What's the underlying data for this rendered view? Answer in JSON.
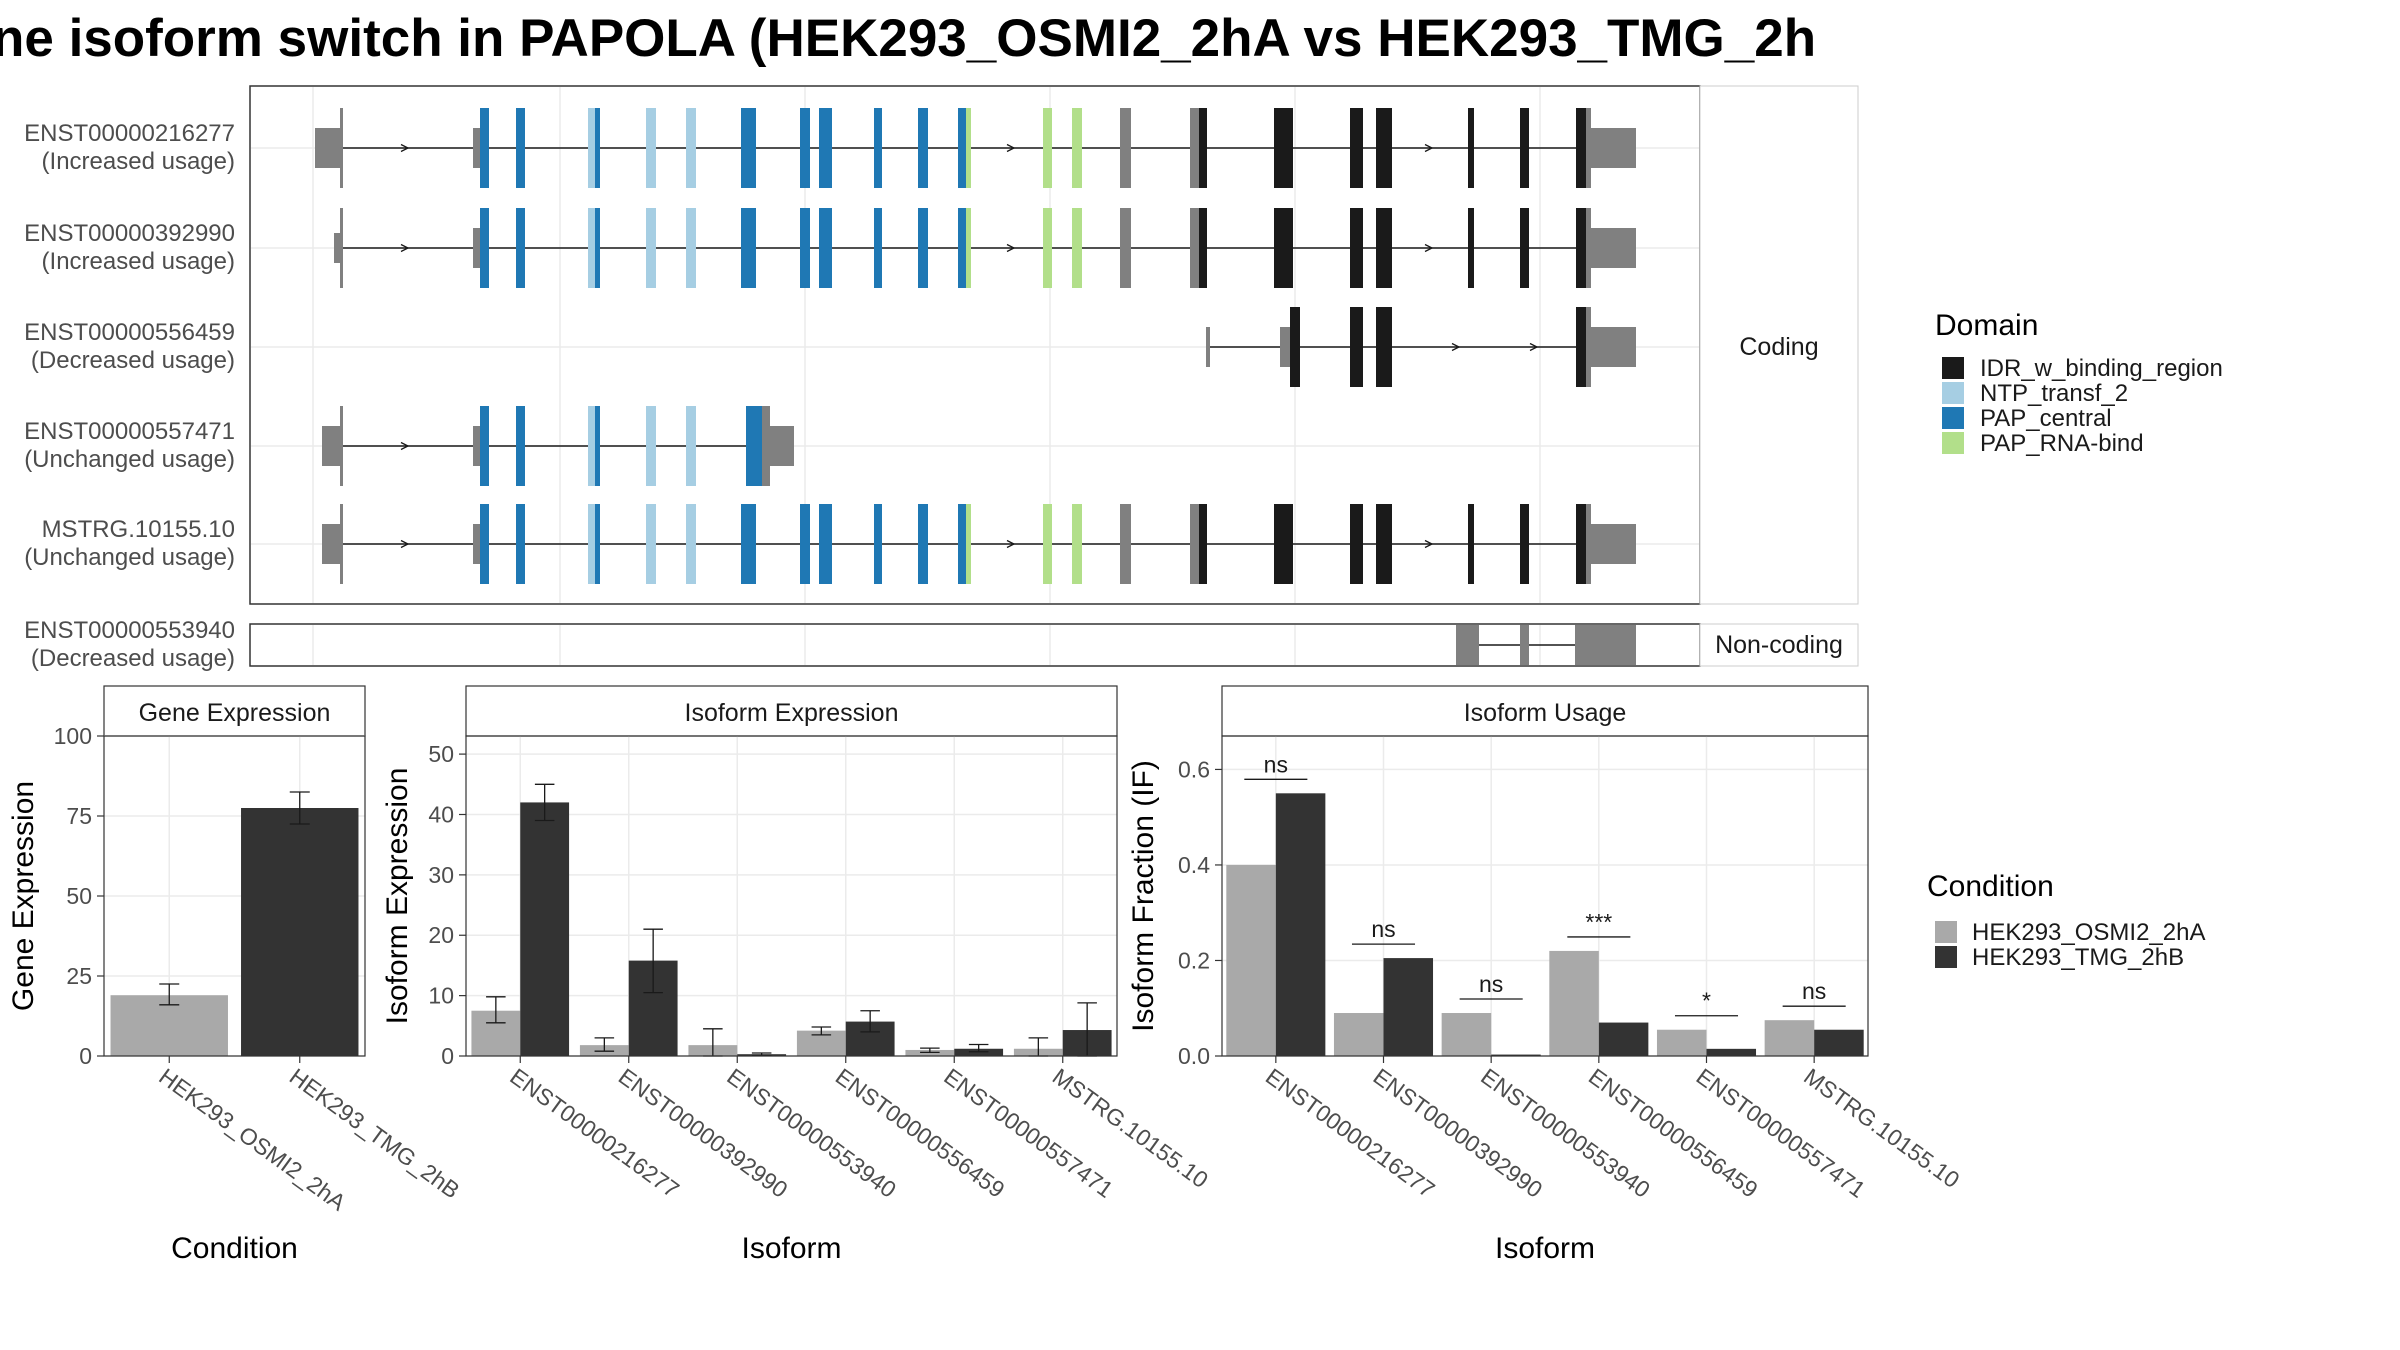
{
  "title": "ne isoform switch in PAPOLA (HEK293_OSMI2_2hA vs HEK293_TMG_2h",
  "colors": {
    "IDR_w_binding_region": "#1a1a1a",
    "NTP_transf_2": "#a6cee3",
    "PAP_central": "#1f78b4",
    "PAP_RNA-bind": "#b2df8a",
    "utr": "#808080",
    "HEK293_OSMI2_2hA": "#a9a9a9",
    "HEK293_TMG_2hB": "#333333",
    "grid": "#ebebeb",
    "panel_border": "#333333"
  },
  "structure": {
    "coding_label": "Coding",
    "noncoding_label": "Non-coding",
    "transcripts": [
      {
        "id": "ENST00000216277",
        "usage": "(Increased usage)",
        "group": "coding"
      },
      {
        "id": "ENST00000392990",
        "usage": "(Increased usage)",
        "group": "coding"
      },
      {
        "id": "ENST00000556459",
        "usage": "(Decreased usage)",
        "group": "coding"
      },
      {
        "id": "ENST00000557471",
        "usage": "(Unchanged usage)",
        "group": "coding"
      },
      {
        "id": "MSTRG.10155.10",
        "usage": "(Unchanged usage)",
        "group": "coding"
      },
      {
        "id": "ENST00000553940",
        "usage": "(Decreased usage)",
        "group": "non-coding"
      }
    ],
    "domain_legend": {
      "title": "Domain",
      "items": [
        "IDR_w_binding_region",
        "NTP_transf_2",
        "PAP_central",
        "PAP_RNA-bind"
      ]
    }
  },
  "condition_legend": {
    "title": "Condition",
    "items": [
      "HEK293_OSMI2_2hA",
      "HEK293_TMG_2hB"
    ]
  },
  "chart_data": [
    {
      "type": "bar",
      "title": "Gene Expression",
      "xlabel": "Condition",
      "ylabel": "Gene Expression",
      "ylim": [
        0,
        100
      ],
      "yticks": [
        "0",
        "25",
        "50",
        "75",
        "100"
      ],
      "categories": [
        "HEK293_OSMI2_2hA",
        "HEK293_TMG_2hB"
      ],
      "values": [
        19,
        77.5
      ],
      "errors": [
        [
          16,
          22.5
        ],
        [
          72.5,
          82.5
        ]
      ]
    },
    {
      "type": "bar",
      "title": "Isoform Expression",
      "xlabel": "Isoform",
      "ylabel": "Isoform Expression",
      "ylim": [
        0,
        53
      ],
      "yticks": [
        "0",
        "10",
        "20",
        "30",
        "40",
        "50"
      ],
      "categories": [
        "ENST00000216277",
        "ENST00000392990",
        "ENST00000553940",
        "ENST00000556459",
        "ENST00000557471",
        "MSTRG.10155.10"
      ],
      "series": [
        {
          "name": "HEK293_OSMI2_2hA",
          "values": [
            7.5,
            1.8,
            1.8,
            4.2,
            1.0,
            1.2
          ],
          "errors": [
            [
              5.5,
              9.8
            ],
            [
              0.8,
              3.0
            ],
            [
              0,
              4.5
            ],
            [
              3.5,
              4.8
            ],
            [
              0.6,
              1.3
            ],
            [
              0,
              3
            ]
          ]
        },
        {
          "name": "HEK293_TMG_2hB",
          "values": [
            42,
            15.8,
            0.3,
            5.7,
            1.2,
            4.3
          ],
          "errors": [
            [
              39,
              45
            ],
            [
              10.5,
              21
            ],
            [
              0.1,
              0.5
            ],
            [
              4,
              7.5
            ],
            [
              0.7,
              1.9
            ],
            [
              0,
              8.8
            ]
          ]
        }
      ]
    },
    {
      "type": "bar",
      "title": "Isoform Usage",
      "xlabel": "Isoform",
      "ylabel": "Isoform Fraction (IF)",
      "ylim": [
        0,
        0.67
      ],
      "yticks": [
        "0.0",
        "0.2",
        "0.4",
        "0.6"
      ],
      "categories": [
        "ENST00000216277",
        "ENST00000392990",
        "ENST00000553940",
        "ENST00000556459",
        "ENST00000557471",
        "MSTRG.10155.10"
      ],
      "series": [
        {
          "name": "HEK293_OSMI2_2hA",
          "values": [
            0.4,
            0.09,
            0.09,
            0.22,
            0.055,
            0.075
          ]
        },
        {
          "name": "HEK293_TMG_2hB",
          "values": [
            0.55,
            0.205,
            0.003,
            0.07,
            0.015,
            0.055
          ]
        }
      ],
      "significance": [
        "ns",
        "ns",
        "ns",
        "***",
        "*",
        "ns"
      ]
    }
  ]
}
